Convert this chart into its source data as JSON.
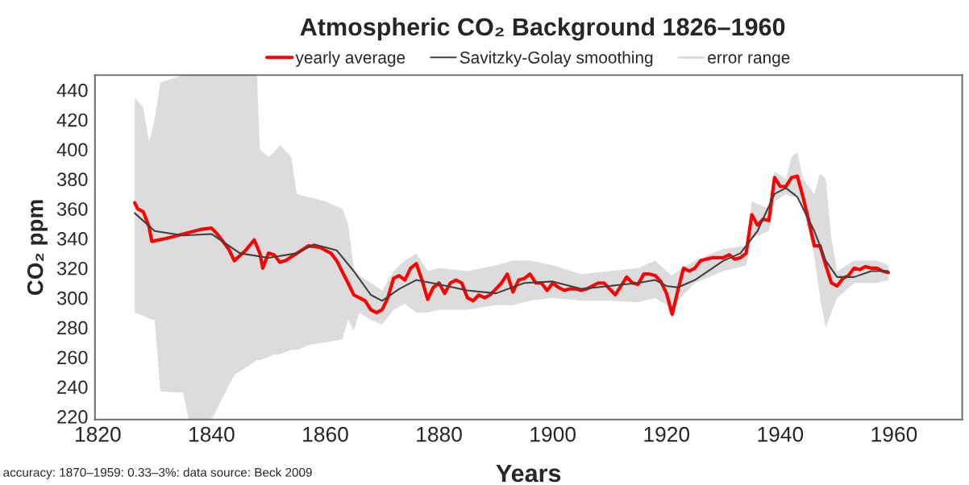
{
  "chart_data": {
    "type": "line",
    "title": "Atmospheric CO₂ Background 1826–1960",
    "xlabel": "Years",
    "ylabel": "CO₂ ppm",
    "annotations": [
      "accuracy: 1870–1959: 0.33–3%: data source: Beck 2009"
    ],
    "xlim": [
      1819.5,
      1972
    ],
    "ylim": [
      218,
      450
    ],
    "xticks": [
      1820,
      1840,
      1860,
      1880,
      1900,
      1920,
      1940,
      1960
    ],
    "yticks": [
      220,
      240,
      260,
      280,
      300,
      320,
      340,
      360,
      380,
      400,
      420,
      440
    ],
    "grid": false,
    "legend": "top",
    "series": [
      {
        "name": "yearly average",
        "color": "#ff0000",
        "x": [
          1826.5,
          1827,
          1828,
          1829,
          1829.5,
          1832,
          1838,
          1840,
          1841,
          1843,
          1844,
          1846,
          1847.5,
          1848.5,
          1849,
          1850,
          1851,
          1852,
          1853,
          1855,
          1857,
          1859,
          1861,
          1862,
          1864,
          1865,
          1866,
          1867,
          1868,
          1869,
          1870,
          1871,
          1872,
          1873,
          1874,
          1875,
          1876,
          1877,
          1878,
          1879,
          1880,
          1881,
          1882,
          1883,
          1884,
          1885,
          1886,
          1887,
          1888,
          1889,
          1890,
          1891,
          1892,
          1893,
          1894,
          1895,
          1896,
          1897,
          1898,
          1899,
          1900,
          1901,
          1902,
          1903,
          1904,
          1905,
          1906,
          1907,
          1908,
          1909,
          1910,
          1911,
          1912,
          1913,
          1914,
          1915,
          1916,
          1917,
          1918,
          1919,
          1920,
          1921,
          1922,
          1923,
          1924,
          1925,
          1926,
          1928,
          1930,
          1931,
          1932,
          1933,
          1934,
          1935,
          1936,
          1937,
          1938,
          1939,
          1940,
          1941,
          1942,
          1943,
          1944,
          1945,
          1946,
          1947,
          1948,
          1949,
          1950,
          1951,
          1952,
          1953,
          1954,
          1955,
          1956,
          1957,
          1958,
          1959
        ],
        "values": [
          364,
          360,
          358,
          348,
          338,
          340,
          346,
          347,
          343,
          333,
          325,
          332,
          339,
          330,
          320,
          330,
          329,
          324,
          325,
          330,
          335,
          334,
          330,
          325,
          310,
          302,
          300,
          298,
          292,
          290,
          292,
          300,
          313,
          315,
          312,
          320,
          323,
          312,
          299,
          307,
          310,
          303,
          310,
          312,
          310,
          300,
          298,
          302,
          300,
          302,
          306,
          310,
          316,
          304,
          312,
          313,
          316,
          310,
          310,
          305,
          310,
          307,
          305,
          306,
          306,
          305,
          306,
          308,
          310,
          310,
          306,
          302,
          308,
          314,
          310,
          309,
          316,
          316,
          315,
          311,
          303,
          289,
          305,
          320,
          318,
          320,
          325,
          327,
          327,
          329,
          326,
          327,
          330,
          356,
          349,
          353,
          352,
          381,
          375,
          375,
          381,
          382,
          368,
          352,
          335,
          335,
          322,
          310,
          308,
          313,
          315,
          320,
          319,
          321,
          320,
          320,
          318,
          317
        ]
      },
      {
        "name": "Savitzky-Golay smoothing",
        "color": "#404040",
        "x": [
          1826.5,
          1830,
          1835,
          1840,
          1845,
          1850,
          1855,
          1858,
          1862,
          1865,
          1868,
          1870,
          1873,
          1876,
          1880,
          1885,
          1890,
          1895,
          1900,
          1905,
          1910,
          1915,
          1918,
          1920,
          1922,
          1925,
          1930,
          1933,
          1936,
          1939,
          1941,
          1943,
          1946,
          1948,
          1950,
          1953,
          1956,
          1959
        ],
        "values": [
          357,
          345,
          342,
          343,
          330,
          327,
          330,
          336,
          332,
          318,
          302,
          298,
          306,
          312,
          309,
          305,
          303,
          310,
          311,
          306,
          308,
          310,
          312,
          308,
          307,
          312,
          325,
          330,
          345,
          370,
          374,
          368,
          345,
          325,
          314,
          314,
          318,
          318
        ]
      },
      {
        "name": "error range",
        "color": "#dcdcdc",
        "x": [
          1826.5,
          1828,
          1829,
          1830,
          1831,
          1835,
          1836,
          1840,
          1844,
          1848,
          1848.5,
          1850,
          1851,
          1852,
          1854,
          1855,
          1857,
          1860,
          1863,
          1864,
          1865,
          1866,
          1868,
          1870,
          1872,
          1874,
          1876,
          1878,
          1880,
          1885,
          1890,
          1893,
          1896,
          1900,
          1905,
          1910,
          1915,
          1918,
          1920,
          1921,
          1922,
          1925,
          1930,
          1934,
          1935,
          1938,
          1939,
          1941,
          1942,
          1943,
          1944,
          1946,
          1947,
          1948,
          1949,
          1950,
          1953,
          1957,
          1959
        ],
        "lower": [
          290,
          288,
          286,
          285,
          237,
          236,
          218,
          218,
          248,
          258,
          258,
          260,
          262,
          262,
          265,
          265,
          268,
          270,
          272,
          285,
          278,
          290,
          285,
          282,
          292,
          296,
          290,
          290,
          292,
          292,
          295,
          295,
          298,
          300,
          298,
          298,
          297,
          300,
          295,
          285,
          298,
          310,
          318,
          322,
          340,
          345,
          365,
          370,
          368,
          370,
          360,
          328,
          300,
          280,
          290,
          300,
          310,
          310,
          312
        ],
        "values": [
          null,
          null,
          null,
          null,
          null,
          null,
          null,
          null,
          null,
          null,
          null,
          null,
          null,
          null,
          null,
          null,
          null,
          null,
          null,
          null,
          null,
          null,
          null,
          null,
          null,
          null,
          null,
          null,
          null,
          null,
          null,
          null,
          null,
          null,
          null,
          null,
          null,
          null,
          null,
          null,
          null,
          null,
          null,
          null,
          null,
          null,
          null,
          null,
          null,
          null,
          null,
          null,
          null,
          null,
          null,
          null,
          null,
          null,
          null
        ],
        "upper": [
          435,
          428,
          405,
          420,
          445,
          450,
          450,
          450,
          450,
          450,
          400,
          395,
          398,
          403,
          395,
          370,
          368,
          365,
          360,
          350,
          320,
          315,
          310,
          305,
          318,
          325,
          330,
          318,
          320,
          318,
          322,
          325,
          325,
          322,
          316,
          318,
          320,
          325,
          318,
          315,
          318,
          325,
          333,
          335,
          365,
          360,
          385,
          380,
          395,
          398,
          380,
          370,
          384,
          380,
          340,
          318,
          325,
          325,
          322
        ]
      }
    ]
  }
}
